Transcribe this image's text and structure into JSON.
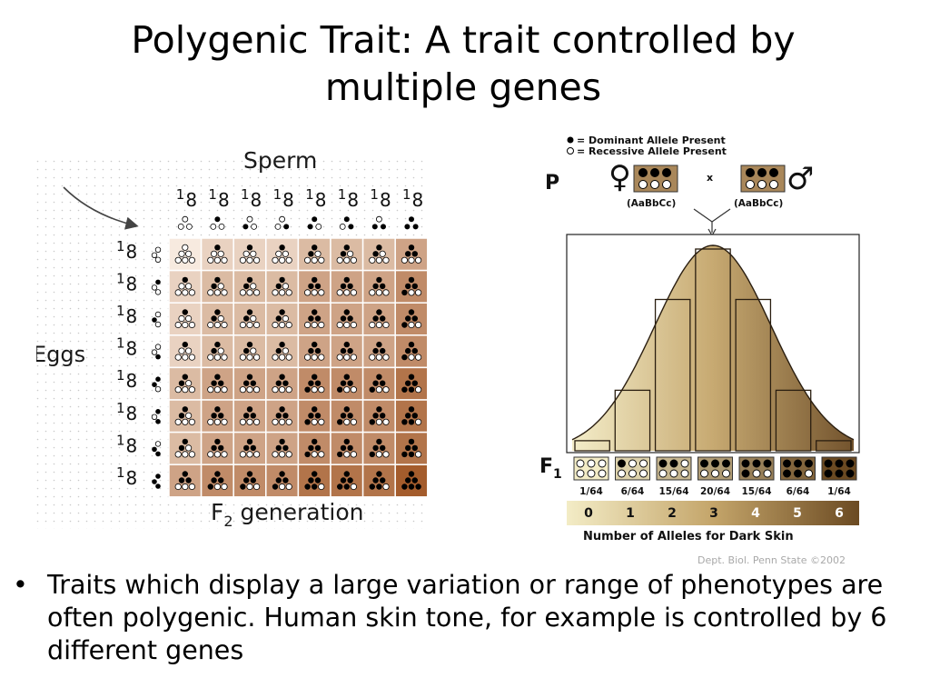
{
  "slide": {
    "title": "Polygenic Trait:  A trait controlled by multiple genes",
    "bullets": [
      "Traits which display a large variation or range of phenotypes are often polygenic.  Human skin tone, for example is controlled by 6 different genes"
    ]
  },
  "punnett": {
    "top_label": "Sperm",
    "side_label": "Eggs",
    "bottom_label_main": "F",
    "bottom_label_sub": "2",
    "bottom_label_rest": " generation",
    "fraction_num": "1",
    "fraction_den": "8",
    "gametes": [
      [
        0,
        0,
        0
      ],
      [
        1,
        0,
        0
      ],
      [
        0,
        1,
        0
      ],
      [
        0,
        0,
        1
      ],
      [
        1,
        1,
        0
      ],
      [
        1,
        0,
        1
      ],
      [
        0,
        1,
        1
      ],
      [
        1,
        1,
        1
      ]
    ],
    "colors": {
      "light": "#f7eadf",
      "dark": "#a45c2c",
      "dominant": "#000000",
      "recessive": "#ffffff"
    }
  },
  "distribution": {
    "legend_dominant": "= Dominant Allele Present",
    "legend_recessive": "= Recessive Allele Present",
    "parent_label": "P",
    "cross_symbol": "x",
    "female_symbol": "♀",
    "male_symbol": "♂",
    "female_genotype": "(AaBbCc)",
    "male_genotype": "(AaBbCc)",
    "f1_main": "F",
    "f1_sub": "1",
    "xlabel": "Number of Alleles for Dark Skin",
    "credit": "Dept. Biol. Penn State ©2002",
    "chart_data": {
      "type": "bar",
      "categories": [
        "0",
        "1",
        "2",
        "3",
        "4",
        "5",
        "6"
      ],
      "values": [
        1,
        6,
        15,
        20,
        15,
        6,
        1
      ],
      "labels": [
        "1/64",
        "6/64",
        "15/64",
        "20/64",
        "15/64",
        "6/64",
        "1/64"
      ],
      "xlabel": "Number of Alleles for Dark Skin",
      "ylim": [
        0,
        20
      ]
    },
    "colors": {
      "light": "#f3ecc6",
      "dark": "#6b4a22"
    }
  }
}
